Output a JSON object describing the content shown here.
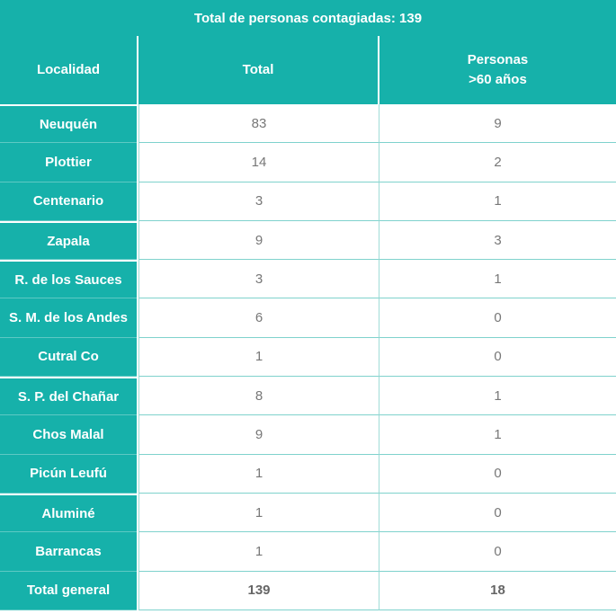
{
  "table": {
    "title": "Total de personas contagiadas: 139",
    "headers": {
      "localidad": "Localidad",
      "total": "Total",
      "mayores_line1": "Personas",
      "mayores_line2": ">60 años"
    },
    "rows": [
      {
        "localidad": "Neuquén",
        "total": "83",
        "mayores": "9"
      },
      {
        "localidad": "Plottier",
        "total": "14",
        "mayores": "2"
      },
      {
        "localidad": "Centenario",
        "total": "3",
        "mayores": "1"
      },
      {
        "localidad": "Zapala",
        "total": "9",
        "mayores": "3"
      },
      {
        "localidad": "R. de los Sauces",
        "total": "3",
        "mayores": "1"
      },
      {
        "localidad": "S. M. de los Andes",
        "total": "6",
        "mayores": "0"
      },
      {
        "localidad": "Cutral Co",
        "total": "1",
        "mayores": "0"
      },
      {
        "localidad": "S. P. del Chañar",
        "total": "8",
        "mayores": "1"
      },
      {
        "localidad": "Chos Malal",
        "total": "9",
        "mayores": "1"
      },
      {
        "localidad": "Picún Leufú",
        "total": "1",
        "mayores": "0"
      },
      {
        "localidad": "Aluminé",
        "total": "1",
        "mayores": "0"
      },
      {
        "localidad": "Barrancas",
        "total": "1",
        "mayores": "0"
      },
      {
        "localidad": "Total general",
        "total": "139",
        "mayores": "18"
      }
    ]
  },
  "colors": {
    "accent": "#16b1aa",
    "text_muted": "#777777"
  }
}
